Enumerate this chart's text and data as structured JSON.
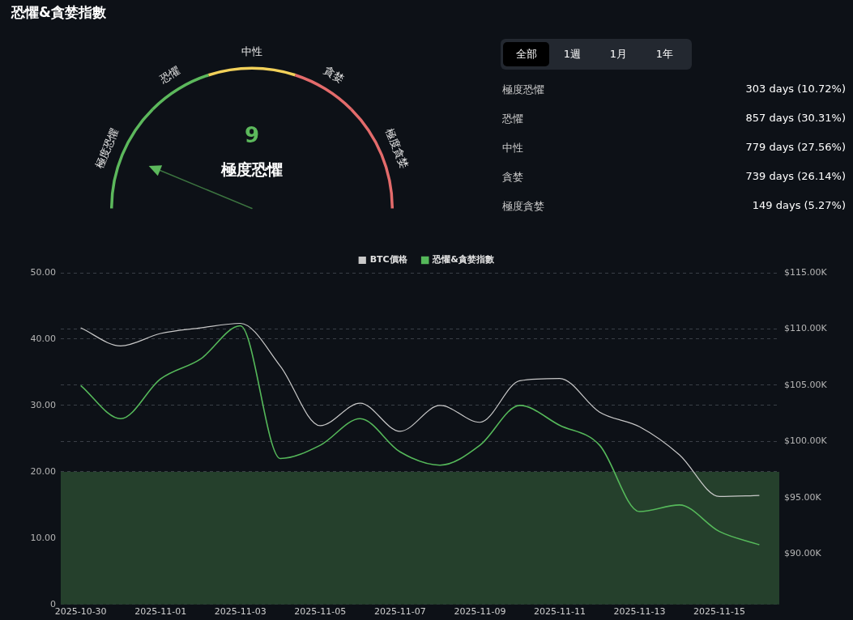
{
  "chart_data": [
    {
      "type": "donut",
      "title": "恐懼&貪婪指數",
      "categories": [
        "極度恐懼",
        "恐懼",
        "中性",
        "貪婪",
        "極度貪婪"
      ],
      "values": [
        25,
        15,
        20,
        15,
        25
      ],
      "colors": [
        "#5cb85c",
        "#5cb85c",
        "#f2d15a",
        "#e36b6b",
        "#e36b6b"
      ],
      "needle": "極度恐懼",
      "annotations": [
        "9",
        "極度恐懼"
      ]
    },
    {
      "type": "other",
      "annotations": [
        "全部",
        "1週",
        "1月",
        "1年"
      ],
      "categories": [
        "極度恐懼",
        "恐懼",
        "中性",
        "貪婪",
        "極度貪婪"
      ],
      "value_labels": [
        "303 days (10.72%)",
        "857 days (30.31%)",
        "779 days (27.56%)",
        "739 days (26.14%)",
        "149 days (5.27%)"
      ]
    },
    {
      "type": "line",
      "legend": "top",
      "marker": "none",
      "grid": "y",
      "x": [
        "2025-10-30",
        "2025-10-31",
        "2025-11-01",
        "2025-11-02",
        "2025-11-03",
        "2025-11-04",
        "2025-11-05",
        "2025-11-06",
        "2025-11-07",
        "2025-11-08",
        "2025-11-09",
        "2025-11-10",
        "2025-11-11",
        "2025-11-12",
        "2025-11-13",
        "2025-11-14",
        "2025-11-15",
        "2025-11-16"
      ],
      "series": [
        {
          "name": "BTC價格",
          "color": "#c9c9c9",
          "axis": "y2",
          "values": [
            110.1,
            108.5,
            109.6,
            110.1,
            110.5,
            106.7,
            101.4,
            103.4,
            100.9,
            103.2,
            101.7,
            105.4,
            105.6,
            102.6,
            101.3,
            98.8,
            95.1,
            95.2
          ]
        },
        {
          "name": "恐懼&貪婪指數",
          "color": "#55b85a",
          "values": [
            33,
            28,
            34,
            37,
            42,
            22,
            24,
            28,
            23,
            21,
            24,
            30,
            27,
            24,
            14,
            15,
            11,
            9
          ]
        }
      ],
      "xlim": [
        "2025-10-29T12:00",
        "2025-11-16T12:00"
      ],
      "xticks": [
        "2025-10-30",
        "2025-11-01",
        "2025-11-03",
        "2025-11-05",
        "2025-11-07",
        "2025-11-09",
        "2025-11-11",
        "2025-11-13",
        "2025-11-15"
      ],
      "ylim": [
        0,
        50
      ],
      "yticks": [
        0,
        {
          "value": 10,
          "label": "10.00"
        },
        {
          "value": 20,
          "label": "20.00"
        },
        {
          "value": 30,
          "label": "30.00"
        },
        {
          "value": 40,
          "label": "40.00"
        },
        {
          "value": 50,
          "label": "50.00"
        }
      ],
      "y2lim": [
        85.5,
        115
      ],
      "y2ticks": [
        {
          "value": 90,
          "label": "$90.00K"
        },
        {
          "value": 95,
          "label": "$95.00K"
        },
        {
          "value": 100,
          "label": "$100.00K"
        },
        {
          "value": 105,
          "label": "$105.00K"
        },
        {
          "value": 110,
          "label": "$110.00K"
        },
        {
          "value": 115,
          "label": "$115.00K"
        }
      ],
      "bands": [
        {
          "axis": "y",
          "from": 0,
          "to": 20,
          "color": "#25402c"
        }
      ]
    }
  ]
}
